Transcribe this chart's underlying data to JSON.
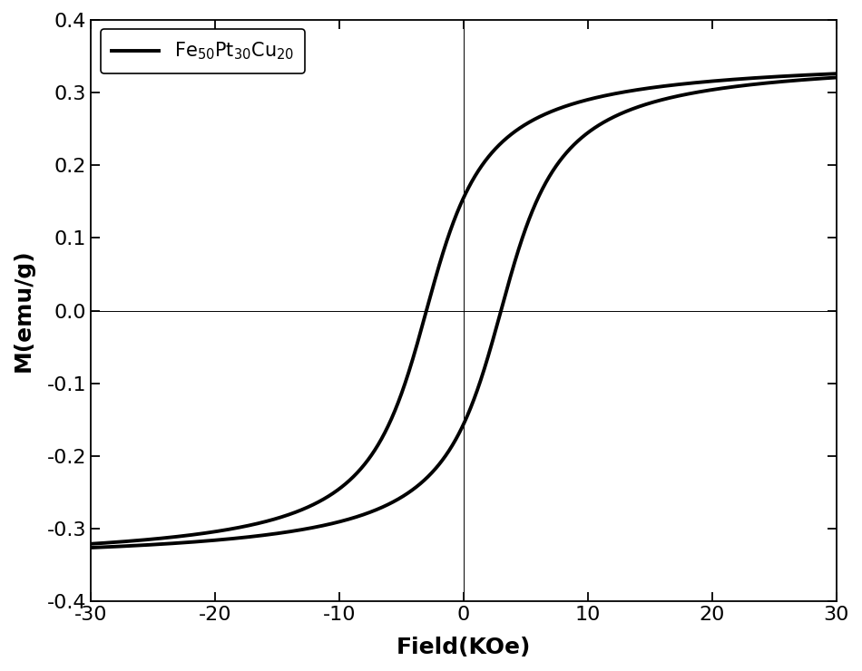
{
  "title": "",
  "xlabel": "Field(KOe)",
  "ylabel": "M(emu/g)",
  "xlim": [
    -30,
    30
  ],
  "ylim": [
    -0.4,
    0.4
  ],
  "xticks": [
    -30,
    -20,
    -10,
    0,
    10,
    20,
    30
  ],
  "yticks": [
    -0.4,
    -0.3,
    -0.2,
    -0.1,
    0.0,
    0.1,
    0.2,
    0.3,
    0.4
  ],
  "line_color": "#000000",
  "line_width": 2.8,
  "legend_label": "Fe$_{50}$Pt$_{30}$Cu$_{20}$",
  "background_color": "#ffffff",
  "Ms_true": 0.35,
  "Hc_upper": 3.0,
  "Hc_lower": -3.0,
  "steepness": 0.28,
  "xlabel_fontsize": 18,
  "ylabel_fontsize": 18,
  "tick_fontsize": 16,
  "legend_fontsize": 15
}
